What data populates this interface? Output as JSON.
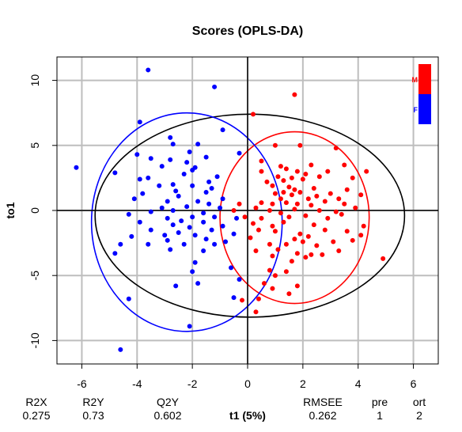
{
  "chart_data": {
    "type": "scatter",
    "title": "Scores (OPLS-DA)",
    "xlabel": "t1 (5%)",
    "ylabel": "to1",
    "xlim": [
      -6.9,
      6.9
    ],
    "ylim": [
      -11.8,
      11.8
    ],
    "xticks": [
      -6,
      -4,
      -2,
      0,
      2,
      4,
      6
    ],
    "yticks": [
      -10,
      -5,
      0,
      5,
      10
    ],
    "grid": true,
    "legend_position": "top-right",
    "series": [
      {
        "name": "M",
        "color": "#ff0000",
        "points": [
          [
            1.7,
            8.9
          ],
          [
            0.2,
            7.4
          ],
          [
            1.0,
            5.0
          ],
          [
            1.9,
            5.0
          ],
          [
            3.2,
            4.8
          ],
          [
            0.5,
            3.8
          ],
          [
            1.2,
            3.4
          ],
          [
            2.3,
            3.5
          ],
          [
            3.5,
            3.5
          ],
          [
            0.5,
            3.0
          ],
          [
            1.4,
            3.2
          ],
          [
            1.8,
            3.0
          ],
          [
            2.1,
            2.8
          ],
          [
            2.9,
            3.0
          ],
          [
            4.3,
            3.0
          ],
          [
            1.1,
            2.6
          ],
          [
            1.6,
            2.5
          ],
          [
            3.8,
            2.5
          ],
          [
            0.7,
            2.2
          ],
          [
            1.3,
            2.3
          ],
          [
            2.0,
            2.4
          ],
          [
            2.6,
            2.6
          ],
          [
            0.9,
            1.9
          ],
          [
            1.5,
            1.8
          ],
          [
            1.7,
            1.6
          ],
          [
            2.4,
            1.7
          ],
          [
            3.6,
            1.6
          ],
          [
            1.0,
            1.3
          ],
          [
            1.3,
            1.4
          ],
          [
            1.6,
            1.2
          ],
          [
            1.9,
            1.4
          ],
          [
            2.5,
            1.1
          ],
          [
            3.0,
            1.3
          ],
          [
            4.1,
            1.2
          ],
          [
            1.2,
            0.9
          ],
          [
            2.2,
            0.9
          ],
          [
            2.8,
            0.7
          ],
          [
            3.3,
            0.9
          ],
          [
            -0.3,
            0.5
          ],
          [
            0.5,
            0.6
          ],
          [
            0.9,
            0.5
          ],
          [
            1.4,
            0.6
          ],
          [
            1.8,
            0.5
          ],
          [
            2.3,
            0.4
          ],
          [
            3.5,
            0.5
          ],
          [
            -0.5,
            0.0
          ],
          [
            0.3,
            0.2
          ],
          [
            0.8,
            0.0
          ],
          [
            1.2,
            -0.2
          ],
          [
            1.7,
            0.1
          ],
          [
            2.6,
            0.0
          ],
          [
            3.2,
            -0.1
          ],
          [
            3.9,
            0.2
          ],
          [
            -0.1,
            -0.5
          ],
          [
            0.5,
            -0.6
          ],
          [
            1.5,
            -0.5
          ],
          [
            2.1,
            -0.4
          ],
          [
            2.9,
            -0.6
          ],
          [
            3.4,
            -0.3
          ],
          [
            0.2,
            -1.0
          ],
          [
            0.9,
            -1.2
          ],
          [
            1.3,
            -0.9
          ],
          [
            2.4,
            -1.1
          ],
          [
            4.2,
            -1.2
          ],
          [
            0.4,
            -1.5
          ],
          [
            1.0,
            -1.6
          ],
          [
            1.9,
            -1.8
          ],
          [
            2.8,
            -1.5
          ],
          [
            3.6,
            -1.6
          ],
          [
            0.1,
            -2.1
          ],
          [
            1.7,
            -2.2
          ],
          [
            2.2,
            -2.0
          ],
          [
            4.1,
            -1.9
          ],
          [
            0.8,
            -2.6
          ],
          [
            1.4,
            -2.6
          ],
          [
            2.0,
            -2.4
          ],
          [
            2.5,
            -2.7
          ],
          [
            3.1,
            -2.4
          ],
          [
            3.8,
            -2.3
          ],
          [
            0.3,
            -3.1
          ],
          [
            1.1,
            -3.0
          ],
          [
            1.8,
            -3.3
          ],
          [
            2.3,
            -3.4
          ],
          [
            3.3,
            -3.1
          ],
          [
            0.9,
            -3.5
          ],
          [
            2.1,
            -3.6
          ],
          [
            2.7,
            -3.4
          ],
          [
            1.6,
            -3.9
          ],
          [
            4.9,
            -3.7
          ],
          [
            0.8,
            -4.6
          ],
          [
            1.4,
            -4.7
          ],
          [
            1.0,
            -5.0
          ],
          [
            0.6,
            -5.6
          ],
          [
            1.8,
            -5.8
          ],
          [
            0.9,
            -6.0
          ],
          [
            1.5,
            -6.4
          ],
          [
            0.4,
            -6.8
          ],
          [
            -0.2,
            -6.9
          ],
          [
            0.3,
            -7.8
          ]
        ]
      },
      {
        "name": "F",
        "color": "#0000ff",
        "points": [
          [
            -3.6,
            10.8
          ],
          [
            -1.2,
            9.5
          ],
          [
            -3.9,
            6.8
          ],
          [
            -0.9,
            6.2
          ],
          [
            -2.8,
            5.6
          ],
          [
            -2.7,
            5.1
          ],
          [
            -1.8,
            5.1
          ],
          [
            -4.0,
            4.3
          ],
          [
            -2.1,
            4.5
          ],
          [
            -1.5,
            4.1
          ],
          [
            -3.5,
            4.0
          ],
          [
            -0.3,
            4.4
          ],
          [
            -2.8,
            3.9
          ],
          [
            -2.2,
            3.7
          ],
          [
            -1.9,
            3.3
          ],
          [
            -6.2,
            3.3
          ],
          [
            -3.1,
            3.4
          ],
          [
            -2.0,
            3.1
          ],
          [
            -4.8,
            2.9
          ],
          [
            -3.6,
            2.5
          ],
          [
            -2.3,
            2.8
          ],
          [
            -1.1,
            2.6
          ],
          [
            -3.9,
            2.4
          ],
          [
            -1.4,
            2.2
          ],
          [
            -2.7,
            2.0
          ],
          [
            -3.2,
            1.9
          ],
          [
            -2.0,
            1.9
          ],
          [
            -1.3,
            1.7
          ],
          [
            -2.6,
            1.5
          ],
          [
            -1.5,
            1.4
          ],
          [
            -3.8,
            1.3
          ],
          [
            -2.5,
            1.1
          ],
          [
            -4.1,
            0.9
          ],
          [
            -0.9,
            0.9
          ],
          [
            -2.9,
            0.7
          ],
          [
            -1.8,
            0.7
          ],
          [
            -1.4,
            0.5
          ],
          [
            -3.1,
            0.2
          ],
          [
            -2.2,
            0.3
          ],
          [
            -1.0,
            0.2
          ],
          [
            -2.7,
            0.0
          ],
          [
            -3.5,
            -0.1
          ],
          [
            -1.6,
            -0.2
          ],
          [
            -4.3,
            -0.3
          ],
          [
            -2.0,
            -0.5
          ],
          [
            -1.2,
            -0.5
          ],
          [
            -2.9,
            -0.6
          ],
          [
            -0.4,
            -0.6
          ],
          [
            -3.9,
            -0.9
          ],
          [
            -2.4,
            -0.8
          ],
          [
            -1.6,
            -0.9
          ],
          [
            -2.7,
            -1.1
          ],
          [
            -0.9,
            -1.2
          ],
          [
            -2.1,
            -1.3
          ],
          [
            -3.5,
            -1.5
          ],
          [
            -1.3,
            -1.5
          ],
          [
            -2.5,
            -1.7
          ],
          [
            -0.5,
            -1.8
          ],
          [
            -3.0,
            -1.9
          ],
          [
            -1.9,
            -1.9
          ],
          [
            -4.2,
            -2.0
          ],
          [
            -2.9,
            -2.3
          ],
          [
            -1.5,
            -2.2
          ],
          [
            -0.8,
            -2.4
          ],
          [
            -3.6,
            -2.6
          ],
          [
            -2.3,
            -2.6
          ],
          [
            -1.2,
            -2.6
          ],
          [
            -4.6,
            -2.6
          ],
          [
            -2.8,
            -3.0
          ],
          [
            -1.6,
            -3.1
          ],
          [
            -4.8,
            -3.3
          ],
          [
            -1.9,
            -4.0
          ],
          [
            -0.6,
            -4.4
          ],
          [
            -2.0,
            -4.7
          ],
          [
            -1.8,
            -5.6
          ],
          [
            -0.3,
            -5.3
          ],
          [
            -2.6,
            -5.8
          ],
          [
            -4.3,
            -6.8
          ],
          [
            -0.5,
            -6.7
          ],
          [
            -2.1,
            -8.9
          ],
          [
            -4.6,
            -10.7
          ]
        ]
      }
    ],
    "ellipses": [
      {
        "color": "#000000",
        "cx": 0.08,
        "cy": -0.4,
        "rx": 5.6,
        "ry": 7.8
      },
      {
        "color": "#ff0000",
        "cx": 1.7,
        "cy": -0.55,
        "rx": 2.7,
        "ry": 6.6
      },
      {
        "color": "#0000ff",
        "cx": -2.2,
        "cy": -0.9,
        "rx": 3.45,
        "ry": 8.4
      }
    ],
    "legend": [
      {
        "label": "M",
        "color": "#ff0000"
      },
      {
        "label": "F",
        "color": "#0000ff"
      }
    ],
    "stats": [
      {
        "label": "R2X",
        "value": "0.275"
      },
      {
        "label": "R2Y",
        "value": "0.73"
      },
      {
        "label": "Q2Y",
        "value": "0.602"
      },
      {
        "label": "RMSEE",
        "value": "0.262"
      },
      {
        "label": "pre",
        "value": "1"
      },
      {
        "label": "ort",
        "value": "2"
      }
    ]
  }
}
